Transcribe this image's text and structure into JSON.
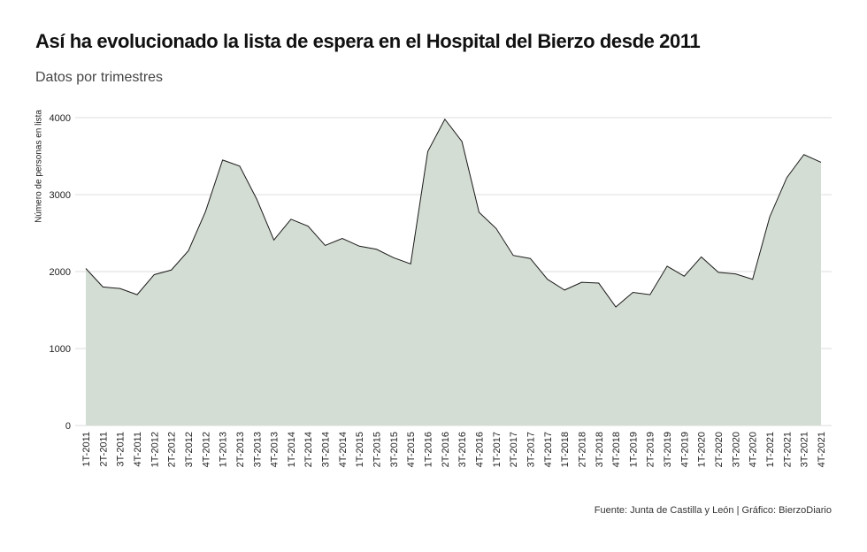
{
  "header": {
    "title": "Así ha evolucionado la lista de espera en el Hospital del Bierzo desde 2011",
    "subtitle": "Datos por trimestres"
  },
  "footer": {
    "caption": "Fuente: Junta de Castilla y León | Gráfico: BierzoDiario"
  },
  "colors": {
    "area_fill": "#d4ddd3",
    "line": "#1a1a1a",
    "grid": "#dddddd"
  },
  "chart_data": {
    "type": "area",
    "title": "Así ha evolucionado la lista de espera en el Hospital del Bierzo desde 2011",
    "subtitle": "Datos por trimestres",
    "xlabel": "",
    "ylabel": "Número de personas en lista",
    "ylim": [
      0,
      4000
    ],
    "yticks": [
      0,
      1000,
      2000,
      3000,
      4000
    ],
    "grid": true,
    "categories": [
      "1T-2011",
      "2T-2011",
      "3T-2011",
      "4T-2011",
      "1T-2012",
      "2T-2012",
      "3T-2012",
      "4T-2012",
      "1T-2013",
      "2T-2013",
      "3T-2013",
      "4T-2013",
      "1T-2014",
      "2T-2014",
      "3T-2014",
      "4T-2014",
      "1T-2015",
      "2T-2015",
      "3T-2015",
      "4T-2015",
      "1T-2016",
      "2T-2016",
      "3T-2016",
      "4T-2016",
      "1T-2017",
      "2T-2017",
      "3T-2017",
      "4T-2017",
      "1T-2018",
      "2T-2018",
      "3T-2018",
      "4T-2018",
      "1T-2019",
      "2T-2019",
      "3T-2019",
      "4T-2019",
      "1T-2020",
      "2T-2020",
      "3T-2020",
      "4T-2020",
      "1T-2021",
      "2T-2021",
      "3T-2021",
      "4T-2021"
    ],
    "values": [
      2040,
      1800,
      1780,
      1700,
      1960,
      2020,
      2270,
      2780,
      3450,
      3370,
      2940,
      2410,
      2680,
      2590,
      2340,
      2430,
      2330,
      2290,
      2180,
      2100,
      3560,
      3980,
      3690,
      2770,
      2560,
      2210,
      2170,
      1900,
      1760,
      1860,
      1850,
      1540,
      1730,
      1700,
      2070,
      1940,
      2190,
      1990,
      1970,
      1900,
      2710,
      3220,
      3520,
      3420
    ]
  }
}
